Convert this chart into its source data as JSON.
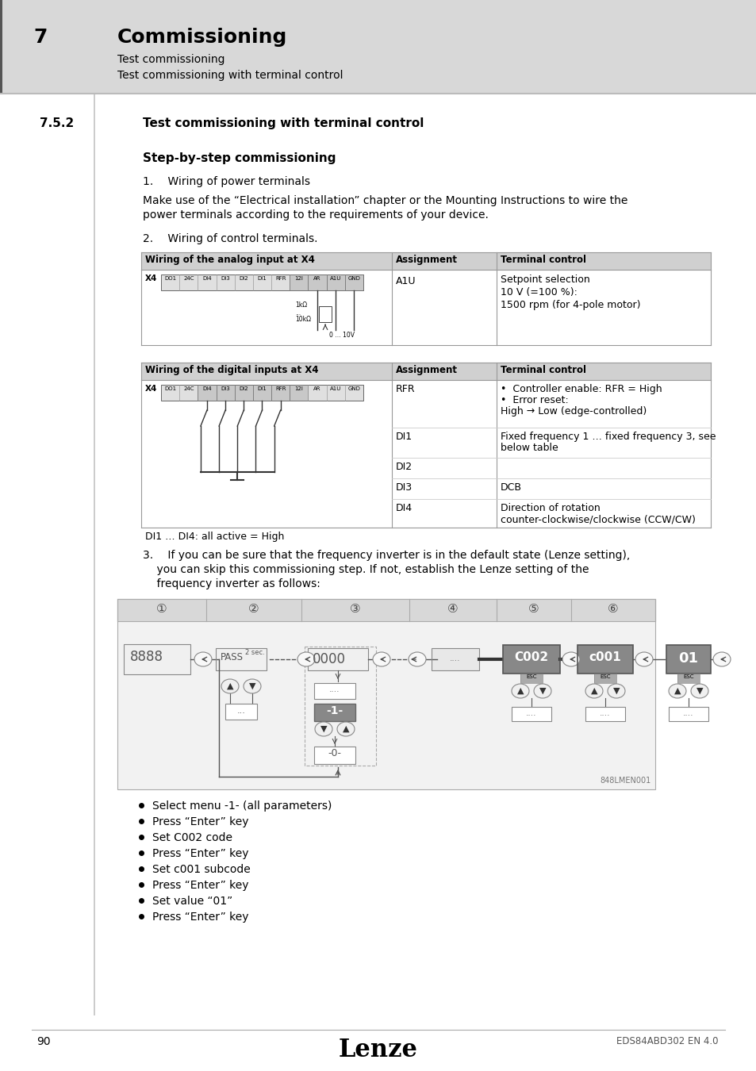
{
  "page_bg": "#e8e8e8",
  "content_bg": "#ffffff",
  "header_bg": "#d8d8d8",
  "table_header_bg": "#d0d0d0",
  "table_row_bg": "#ffffff",
  "chapter_number": "7",
  "chapter_title": "Commissioning",
  "breadcrumb1": "Test commissioning",
  "breadcrumb2": "Test commissioning with terminal control",
  "section_number": "7.5.2",
  "section_title": "Test commissioning with terminal control",
  "subtitle": "Step-by-step commissioning",
  "step1": "1.  Wiring of power terminals",
  "step1_text": "Make use of the “Electrical installation” chapter or the Mounting Instructions to wire the\npower terminals according to the requirements of your device.",
  "step2": "2.  Wiring of control terminals.",
  "analog_table_header1": "Wiring of the analog input at X4",
  "analog_table_header2": "Assignment",
  "analog_table_header3": "Terminal control",
  "analog_assignment": "A1U",
  "analog_terminal": "Setpoint selection\n10 V (=100 %):\n1500 rpm (for 4-pole motor)",
  "digital_table_header1": "Wiring of the digital inputs at X4",
  "digital_table_header2": "Assignment",
  "digital_table_header3": "Terminal control",
  "rfr_assignment": "RFR",
  "rfr_terminal": "•  Controller enable: RFR = High\n•  Error reset:\nHigh → Low (edge-controlled)",
  "di1_assignment": "DI1",
  "di1_terminal": "Fixed frequency 1 … fixed frequency 3, see\nbelow table",
  "di2_assignment": "DI2",
  "di2_terminal": "",
  "di1_di4_note": "DI1 … DI4: all active = High",
  "di3_assignment": "DI3",
  "di3_terminal": "DCB",
  "di4_assignment": "DI4",
  "di4_terminal": "Direction of rotation\ncounter-clockwise/clockwise (CCW/CW)",
  "step3_line1": "3.  If you can be sure that the frequency inverter is in the default state (Lenze setting),",
  "step3_line2": "    you can skip this commissioning step. If not, establish the Lenze setting of the",
  "step3_line3": "    frequency inverter as follows:",
  "bullet_points": [
    "Select menu -1- (all parameters)",
    "Press “Enter” key",
    "Set C002 code",
    "Press “Enter” key",
    "Set c001 subcode",
    "Press “Enter” key",
    "Set value “01”",
    "Press “Enter” key"
  ],
  "footer_page": "90",
  "footer_brand": "Lenze",
  "footer_doc": "EDS84ABD302 EN 4.0",
  "image_label": "848LMEN001"
}
